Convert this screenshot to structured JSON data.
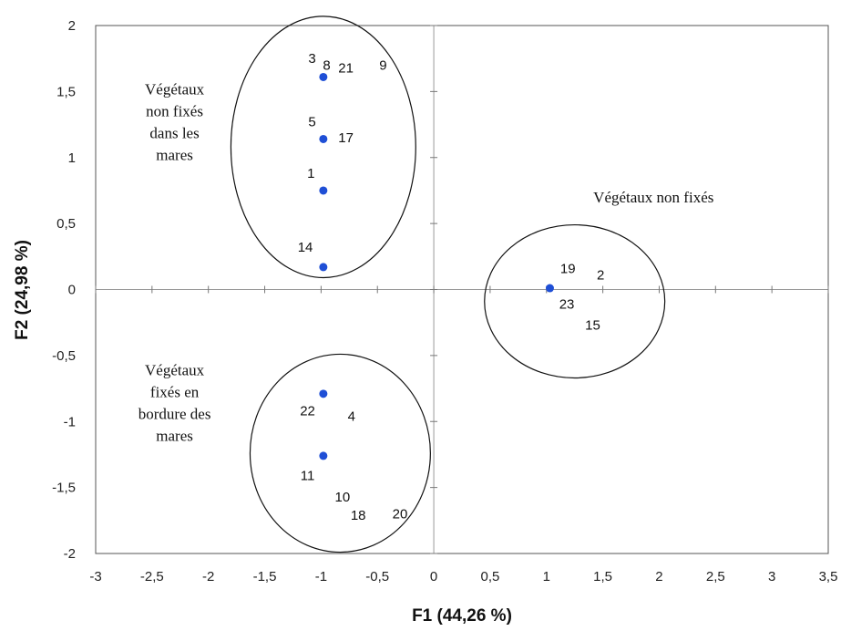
{
  "chart_data": {
    "type": "scatter",
    "title": "",
    "xlabel": "F1 (44,26 %)",
    "ylabel": "F2 (24,98 %)",
    "xlim": [
      -3,
      3.5
    ],
    "ylim": [
      -2,
      2
    ],
    "xticks": [
      -3,
      -2.5,
      -2,
      -1.5,
      -1,
      -0.5,
      0,
      0.5,
      1,
      1.5,
      2,
      2.5,
      3,
      3.5
    ],
    "xtick_labels": [
      "-3",
      "-2,5",
      "-2",
      "-1,5",
      "-1",
      "-0,5",
      "0",
      "0,5",
      "1",
      "1,5",
      "2",
      "2,5",
      "3",
      "3,5"
    ],
    "yticks": [
      -2,
      -1.5,
      -1,
      -0.5,
      0,
      0.5,
      1,
      1.5,
      2
    ],
    "ytick_labels": [
      "-2",
      "-1,5",
      "-1",
      "-0,5",
      "0",
      "0,5",
      "1",
      "1,5",
      "2"
    ],
    "grid": false,
    "points": [
      {
        "x": -0.98,
        "y": 1.61
      },
      {
        "x": -0.98,
        "y": 1.14
      },
      {
        "x": -0.98,
        "y": 0.75
      },
      {
        "x": -0.98,
        "y": 0.17
      },
      {
        "x": 1.03,
        "y": 0.01
      },
      {
        "x": -0.98,
        "y": -0.79
      },
      {
        "x": -0.98,
        "y": -1.26
      }
    ],
    "point_color": "#1f4fd6",
    "point_labels": [
      {
        "text": "3",
        "x": -1.08,
        "y": 1.75
      },
      {
        "text": "8",
        "x": -0.95,
        "y": 1.7
      },
      {
        "text": "21",
        "x": -0.78,
        "y": 1.68
      },
      {
        "text": "9",
        "x": -0.45,
        "y": 1.7
      },
      {
        "text": "5",
        "x": -1.08,
        "y": 1.27
      },
      {
        "text": "17",
        "x": -0.78,
        "y": 1.15
      },
      {
        "text": "1",
        "x": -1.09,
        "y": 0.88
      },
      {
        "text": "14",
        "x": -1.14,
        "y": 0.32
      },
      {
        "text": "19",
        "x": 1.19,
        "y": 0.16
      },
      {
        "text": "2",
        "x": 1.48,
        "y": 0.11
      },
      {
        "text": "23",
        "x": 1.18,
        "y": -0.11
      },
      {
        "text": "15",
        "x": 1.41,
        "y": -0.27
      },
      {
        "text": "22",
        "x": -1.12,
        "y": -0.92
      },
      {
        "text": "4",
        "x": -0.73,
        "y": -0.96
      },
      {
        "text": "11",
        "x": -1.12,
        "y": -1.41
      },
      {
        "text": "10",
        "x": -0.81,
        "y": -1.57
      },
      {
        "text": "18",
        "x": -0.67,
        "y": -1.71
      },
      {
        "text": "20",
        "x": -0.3,
        "y": -1.7
      }
    ],
    "ellipses": [
      {
        "cx": -0.98,
        "cy": 1.08,
        "rx": 0.82,
        "ry": 0.99
      },
      {
        "cx": 1.25,
        "cy": -0.09,
        "rx": 0.8,
        "ry": 0.58
      },
      {
        "cx": -0.83,
        "cy": -1.24,
        "rx": 0.8,
        "ry": 0.75
      }
    ],
    "annotations": [
      {
        "lines": [
          "Végétaux",
          "non fixés",
          "dans les",
          "mares"
        ],
        "x": -2.3,
        "y": 1.48
      },
      {
        "lines": [
          "Végétaux non fixés"
        ],
        "x": 1.95,
        "y": 0.66
      },
      {
        "lines": [
          "Végétaux",
          "fixés en",
          "bordure des",
          "mares"
        ],
        "x": -2.3,
        "y": -0.65
      }
    ]
  }
}
